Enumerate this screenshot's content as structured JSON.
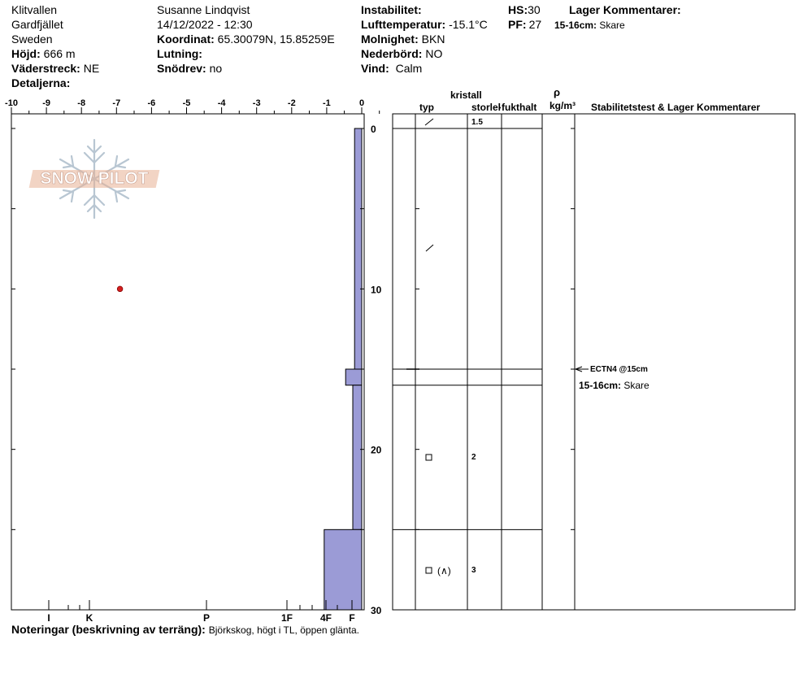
{
  "header": {
    "location": "Klitvallen",
    "region": "Gardfjället",
    "country": "Sweden",
    "elevation_label": "Höjd:",
    "elevation_value": "666 m",
    "aspect_label": "Väderstreck:",
    "aspect_value": "NE",
    "details_label": "Detaljerna:",
    "observer": "Susanne Lindqvist",
    "datetime": "14/12/2022 - 12:30",
    "coord_label": "Koordinat:",
    "coord_value": "65.30079N, 15.85259E",
    "slope_label": "Lutning:",
    "drift_label": "Snödrev:",
    "drift_value": "no",
    "instability_label": "Instabilitet:",
    "airtemp_label": "Lufttemperatur:",
    "airtemp_value": "-15.1°C",
    "sky_label": "Molnighet:",
    "sky_value": "BKN",
    "precip_label": "Nederbörd:",
    "precip_value": "NO",
    "wind_label": "Vind:",
    "wind_value": "Calm",
    "hs_label": "HS:",
    "hs_value": "30",
    "pf_label": "PF:",
    "pf_value": "27",
    "layer_comments_title": "Lager Kommentarer:",
    "layer_comment_depth": "15-16cm:",
    "layer_comment_text": "Skare"
  },
  "logo": {
    "text": "SNOW PILOT"
  },
  "table": {
    "col_type_top": "kristall",
    "col_type": "typ",
    "col_size": "storlek",
    "col_moisture": "fukthalt",
    "col_rho": "ρ",
    "col_density": "kg/m³",
    "col_stability": "Stabilitetstest & Lager Kommentarer",
    "rows": [
      {
        "depth_top": 0,
        "depth_bottom": 15,
        "size": "1.5",
        "symbol": "decomposing"
      },
      {
        "depth_top": 16,
        "depth_bottom": 25,
        "size": "2",
        "symbol": "facet"
      },
      {
        "depth_top": 25,
        "depth_bottom": 30,
        "size": "3",
        "symbol": "facet-depth-hoar",
        "symbol_text": "(∧)"
      }
    ],
    "stability_test": "ECTN4 @15cm",
    "comment_depth": "15-16cm:",
    "comment_text": "Skare"
  },
  "notes": {
    "label": "Noteringar (beskrivning av terräng):",
    "text": "Björkskog, högt i TL, öppen glänta."
  },
  "chart_data": {
    "type": "snow-profile",
    "temperature_axis": {
      "ticks": [
        -10,
        -9,
        -8,
        -7,
        -6,
        -5,
        -4,
        -3,
        -2,
        -1,
        0
      ],
      "range": [
        -10,
        0
      ]
    },
    "depth_axis": {
      "ticks": [
        0,
        10,
        20,
        30
      ],
      "range": [
        0,
        30
      ]
    },
    "hardness_axis": {
      "labels": [
        "I",
        "K",
        "P",
        "1F",
        "4F",
        "F"
      ]
    },
    "temperature_points": [
      {
        "depth": 10,
        "temp": -6.9
      }
    ],
    "hardness_layers": [
      {
        "top": 0,
        "bottom": 15,
        "hardness": 0.2
      },
      {
        "top": 15,
        "bottom": 16,
        "hardness": 0.45
      },
      {
        "top": 16,
        "bottom": 25,
        "hardness": 0.25
      },
      {
        "top": 25,
        "bottom": 30,
        "hardness": 1.05
      }
    ],
    "colors": {
      "hardness_fill": "#9b9bd6",
      "temp_point": "#d42020"
    }
  }
}
